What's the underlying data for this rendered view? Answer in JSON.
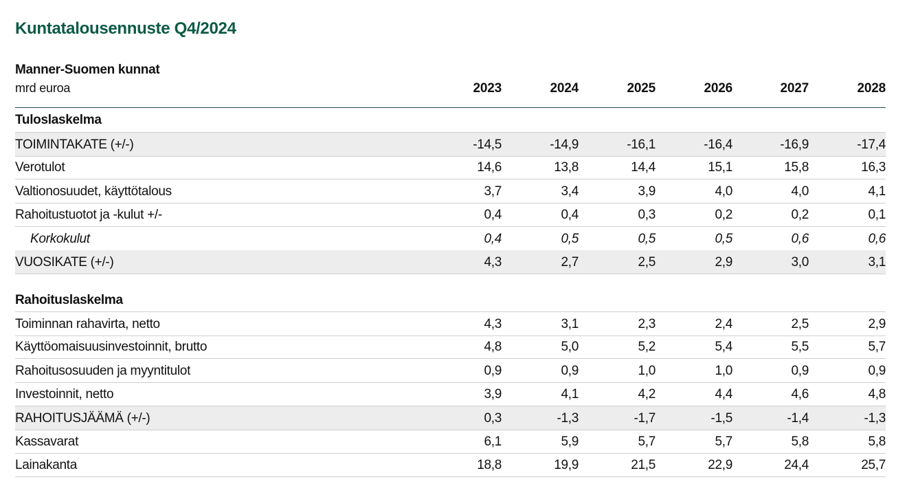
{
  "title": "Kuntatalousennuste Q4/2024",
  "subtitle": "Manner-Suomen kunnat",
  "unit": "mrd euroa",
  "years": [
    "2023",
    "2024",
    "2025",
    "2026",
    "2027",
    "2028"
  ],
  "colors": {
    "title": "#0b5a45",
    "shade": "#ededed",
    "rule": "#1f4e52"
  },
  "chart_data": {
    "type": "table",
    "title": "Kuntatalousennuste Q4/2024",
    "columns": [
      "2023",
      "2024",
      "2025",
      "2026",
      "2027",
      "2028"
    ],
    "sections": [
      {
        "name": "Tuloslaskelma",
        "rows": [
          {
            "label": "TOIMINTAKATE (+/-)",
            "values": [
              "-14,5",
              "-14,9",
              "-16,1",
              "-16,4",
              "-16,9",
              "-17,4"
            ],
            "shaded": true
          },
          {
            "label": "Verotulot",
            "values": [
              "14,6",
              "13,8",
              "14,4",
              "15,1",
              "15,8",
              "16,3"
            ]
          },
          {
            "label": "Valtionosuudet, käyttötalous",
            "values": [
              "3,7",
              "3,4",
              "3,9",
              "4,0",
              "4,0",
              "4,1"
            ]
          },
          {
            "label": "Rahoitustuotot ja -kulut +/-",
            "values": [
              "0,4",
              "0,4",
              "0,3",
              "0,2",
              "0,2",
              "0,1"
            ]
          },
          {
            "label": "Korkokulut",
            "values": [
              "0,4",
              "0,5",
              "0,5",
              "0,5",
              "0,6",
              "0,6"
            ],
            "italic": true
          },
          {
            "label": "VUOSIKATE (+/-)",
            "values": [
              "4,3",
              "2,7",
              "2,5",
              "2,9",
              "3,0",
              "3,1"
            ],
            "shaded": true
          }
        ]
      },
      {
        "name": "Rahoituslaskelma",
        "rows": [
          {
            "label": "Toiminnan rahavirta, netto",
            "values": [
              "4,3",
              "3,1",
              "2,3",
              "2,4",
              "2,5",
              "2,9"
            ]
          },
          {
            "label": "Käyttöomaisuusinvestoinnit, brutto",
            "values": [
              "4,8",
              "5,0",
              "5,2",
              "5,4",
              "5,5",
              "5,7"
            ]
          },
          {
            "label": "Rahoitusosuuden ja myyntitulot",
            "values": [
              "0,9",
              "0,9",
              "1,0",
              "1,0",
              "0,9",
              "0,9"
            ]
          },
          {
            "label": "Investoinnit, netto",
            "values": [
              "3,9",
              "4,1",
              "4,2",
              "4,4",
              "4,6",
              "4,8"
            ]
          },
          {
            "label": "RAHOITUSJÄÄMÄ (+/-)",
            "values": [
              "0,3",
              "-1,3",
              "-1,7",
              "-1,5",
              "-1,4",
              "-1,3"
            ],
            "shaded": true
          },
          {
            "label": "Kassavarat",
            "values": [
              "6,1",
              "5,9",
              "5,7",
              "5,7",
              "5,8",
              "5,8"
            ]
          },
          {
            "label": "Lainakanta",
            "values": [
              "18,8",
              "19,9",
              "21,5",
              "22,9",
              "24,4",
              "25,7"
            ]
          }
        ]
      }
    ]
  }
}
